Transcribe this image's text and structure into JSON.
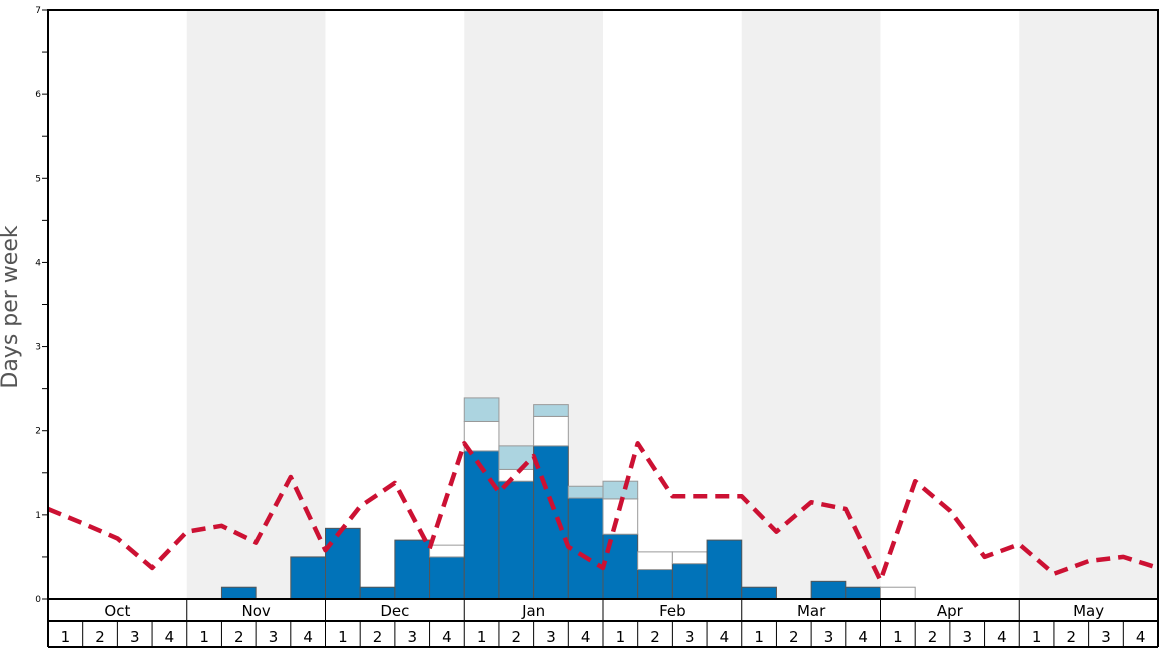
{
  "chart_data": {
    "type": "bar",
    "ylabel": "Days per week",
    "ylim": [
      0,
      7
    ],
    "y_ticks": [
      "0",
      "1",
      "2",
      "3",
      "4",
      "5",
      "6",
      "7"
    ],
    "months": [
      "Oct",
      "Nov",
      "Dec",
      "Jan",
      "Feb",
      "Mar",
      "Apr",
      "May"
    ],
    "week_labels": [
      "1",
      "2",
      "3",
      "4"
    ],
    "colors": {
      "bar": "#0173b9",
      "bar_secondary": "#ffffff",
      "bar_tertiary": "#acd4e0",
      "average_line": "#cc1133",
      "shade": "#f0f0f0"
    },
    "series": [
      {
        "values": [
          0,
          0,
          0,
          0,
          0,
          0.14,
          0,
          0.5,
          0.84,
          0.14,
          0.7,
          0.5,
          1.76,
          1.4,
          1.82,
          1.2,
          0.77,
          0.35,
          0.42,
          0.7,
          0.14,
          0,
          0.21,
          0.14,
          0,
          0,
          0,
          0,
          0,
          0,
          0,
          0
        ]
      },
      {
        "values": [
          0,
          0,
          0,
          0,
          0,
          0,
          0,
          0,
          0,
          0,
          0,
          0.14,
          0.35,
          0.14,
          0.35,
          0,
          0.42,
          0.21,
          0.14,
          0,
          0,
          0,
          0,
          0,
          0.14,
          0,
          0,
          0,
          0,
          0,
          0,
          0
        ]
      },
      {
        "values": [
          0,
          0,
          0,
          0,
          0,
          0,
          0,
          0,
          0,
          0,
          0,
          0,
          0.28,
          0.28,
          0.14,
          0.14,
          0.21,
          0,
          0,
          0,
          0,
          0,
          0,
          0,
          0,
          0,
          0,
          0,
          0,
          0,
          0,
          0
        ]
      }
    ],
    "average_line": [
      1.07,
      0.9,
      0.72,
      0.37,
      0.8,
      0.87,
      0.67,
      1.45,
      0.58,
      1.1,
      1.38,
      0.6,
      1.85,
      1.27,
      1.7,
      0.62,
      0.37,
      1.85,
      1.22,
      1.22,
      1.22,
      0.8,
      1.15,
      1.07,
      0.22,
      1.4,
      1.05,
      0.5,
      0.65,
      0.3,
      0.45,
      0.5,
      0.37
    ]
  }
}
